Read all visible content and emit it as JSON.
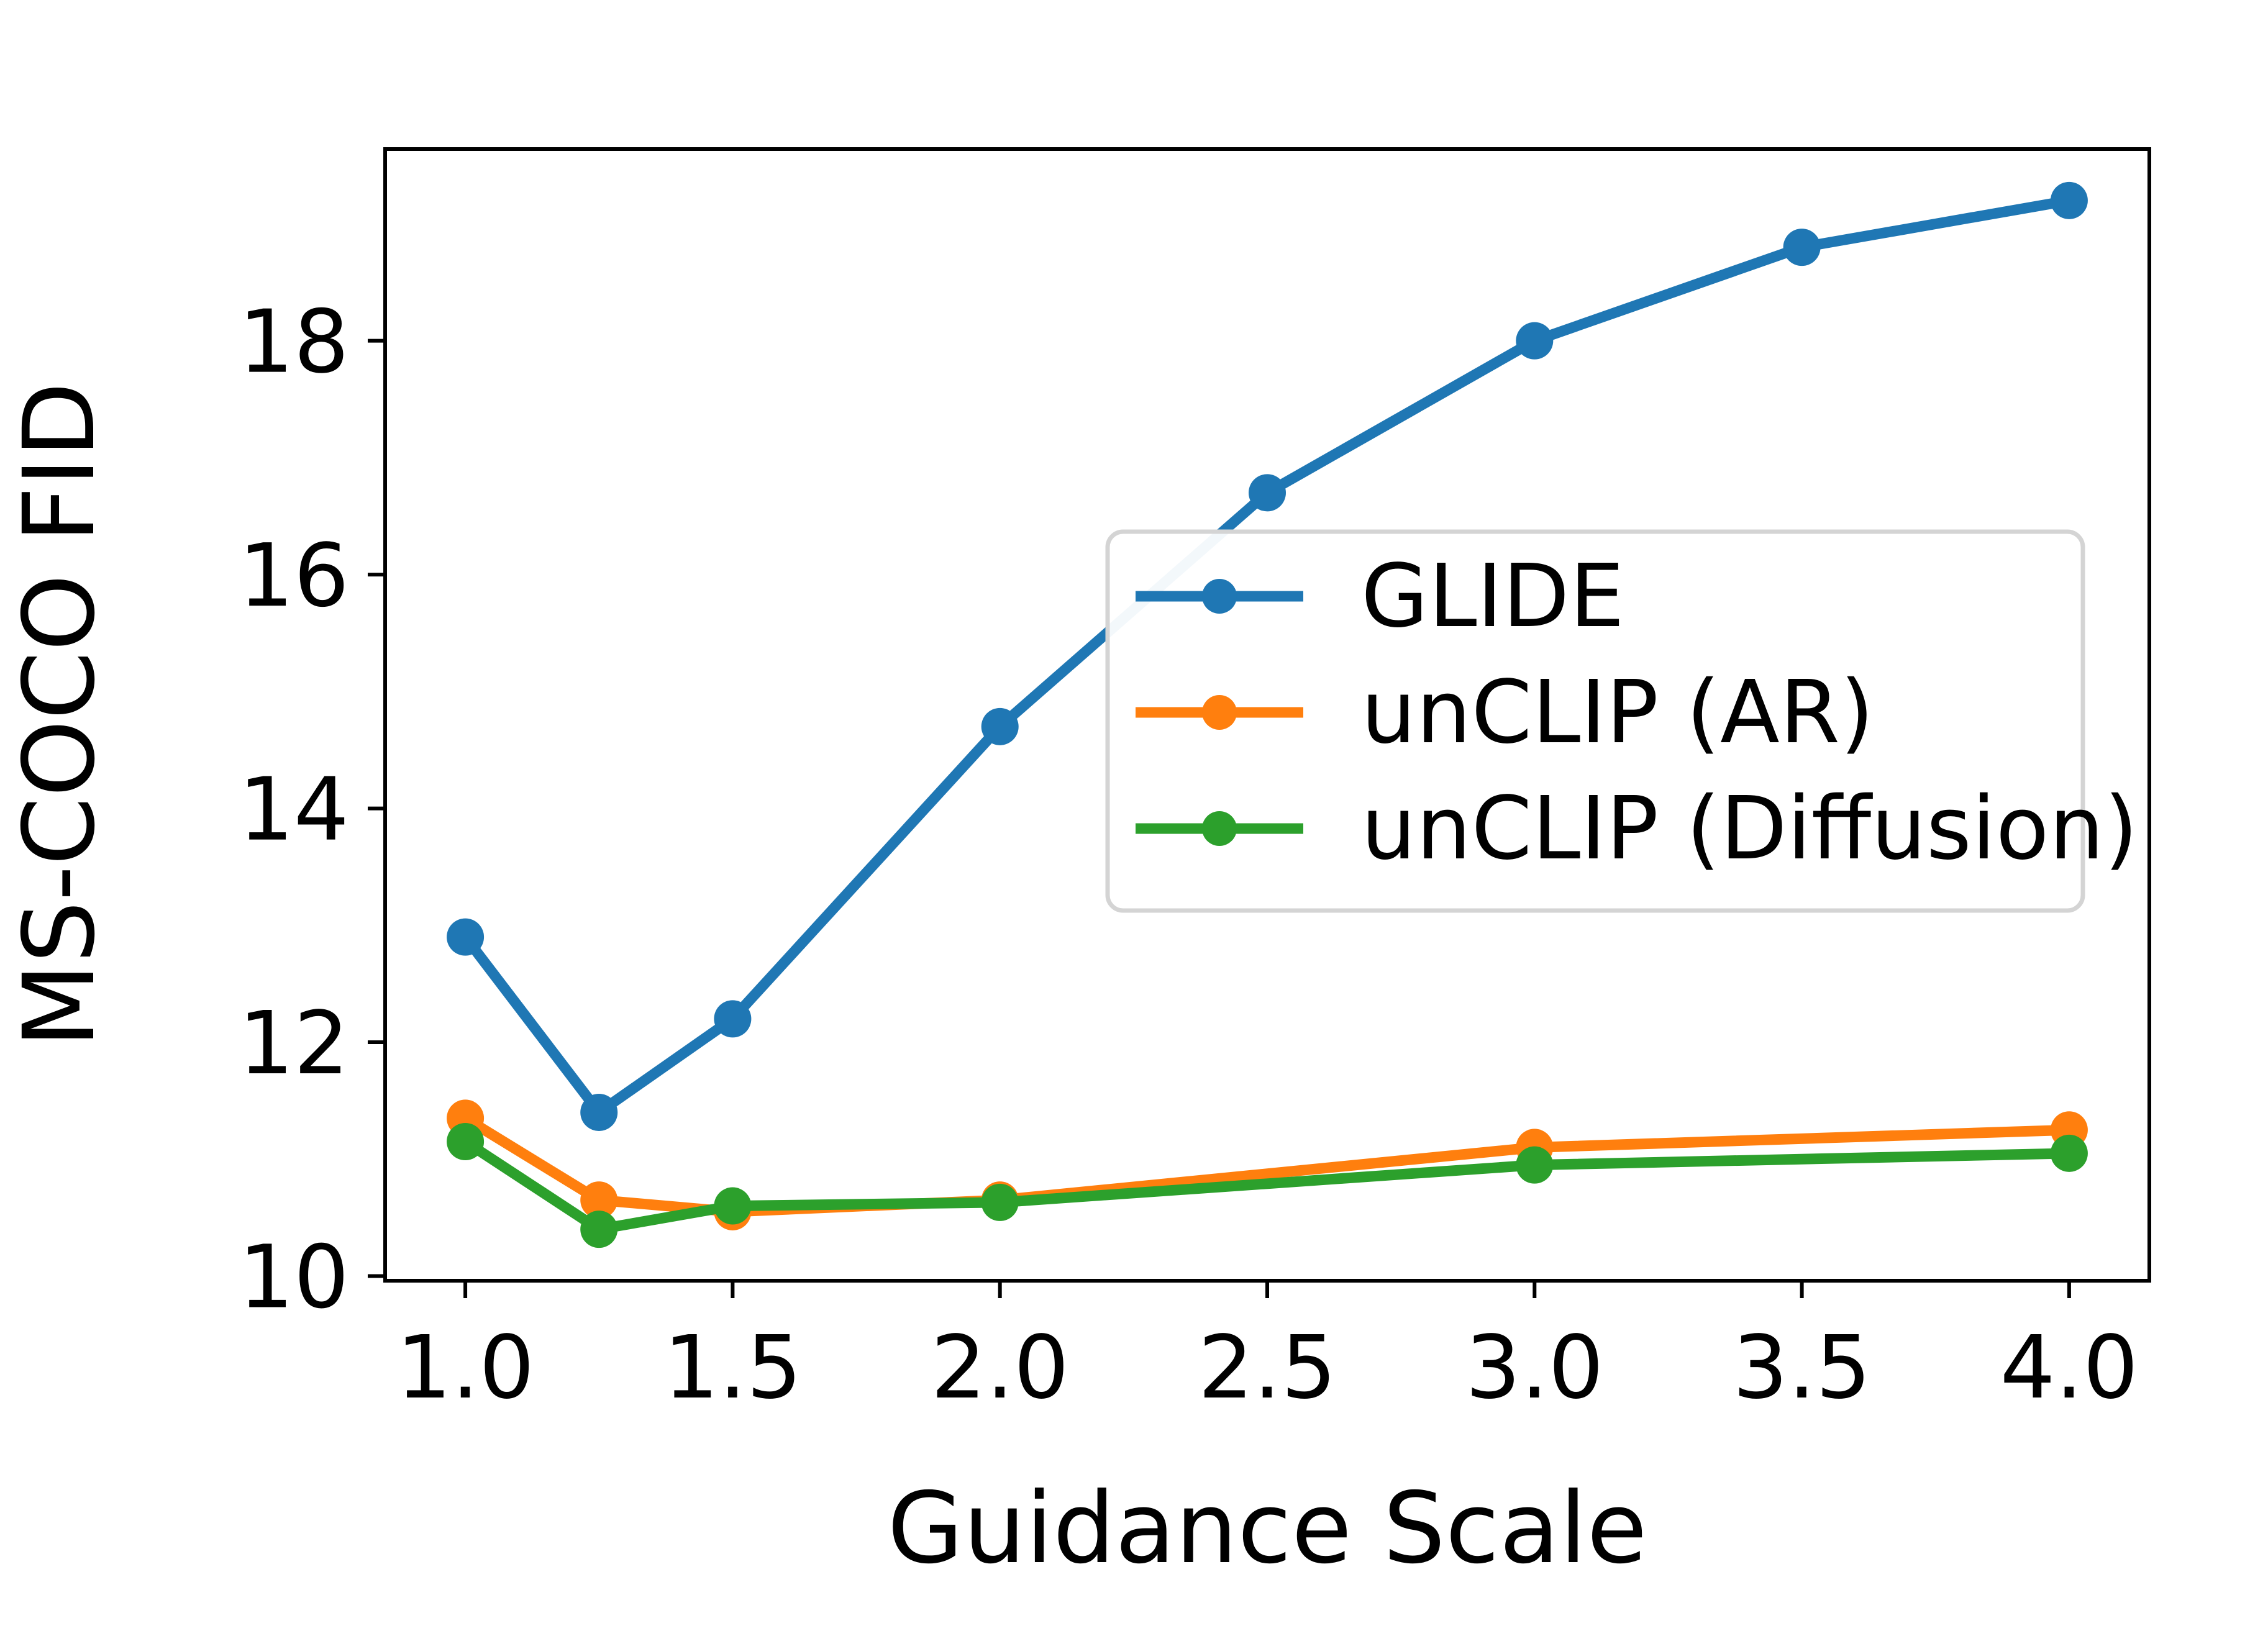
{
  "figure": {
    "background_color": "#ffffff",
    "axes_color": "#000000"
  },
  "chart_data": {
    "type": "line",
    "title": "",
    "xlabel": "Guidance Scale",
    "ylabel": "MS-COCO FID",
    "xlim": [
      0.85,
      4.15
    ],
    "ylim": [
      9.96,
      19.64
    ],
    "xticks": {
      "values": [
        1.0,
        1.5,
        2.0,
        2.5,
        3.0,
        3.5,
        4.0
      ],
      "labels": [
        "1.0",
        "1.5",
        "2.0",
        "2.5",
        "3.0",
        "3.5",
        "4.0"
      ]
    },
    "yticks": {
      "values": [
        10,
        12,
        14,
        16,
        18
      ],
      "labels": [
        "10",
        "12",
        "14",
        "16",
        "18"
      ]
    },
    "grid": false,
    "legend": {
      "position": "inside center-right",
      "border_color": "#d4d4d4",
      "background_color": "#ffffff",
      "entries": [
        "GLIDE",
        "unCLIP (AR)",
        "unCLIP (Diffusion)"
      ]
    },
    "series": [
      {
        "name": "GLIDE",
        "color": "#1f77b4",
        "marker": "circle",
        "x": [
          1.0,
          1.25,
          1.5,
          2.0,
          2.5,
          3.0,
          3.5,
          4.0
        ],
        "y": [
          12.9,
          11.4,
          12.2,
          14.7,
          16.7,
          18.0,
          18.8,
          19.2
        ]
      },
      {
        "name": "unCLIP (AR)",
        "color": "#ff7f0e",
        "marker": "circle",
        "x": [
          1.0,
          1.25,
          1.5,
          2.0,
          3.0,
          4.0
        ],
        "y": [
          11.35,
          10.65,
          10.55,
          10.65,
          11.1,
          11.25
        ]
      },
      {
        "name": "unCLIP (Diffusion)",
        "color": "#2ca02c",
        "marker": "circle",
        "x": [
          1.0,
          1.25,
          1.5,
          2.0,
          3.0,
          4.0
        ],
        "y": [
          11.15,
          10.4,
          10.6,
          10.63,
          10.95,
          11.05
        ]
      }
    ]
  }
}
